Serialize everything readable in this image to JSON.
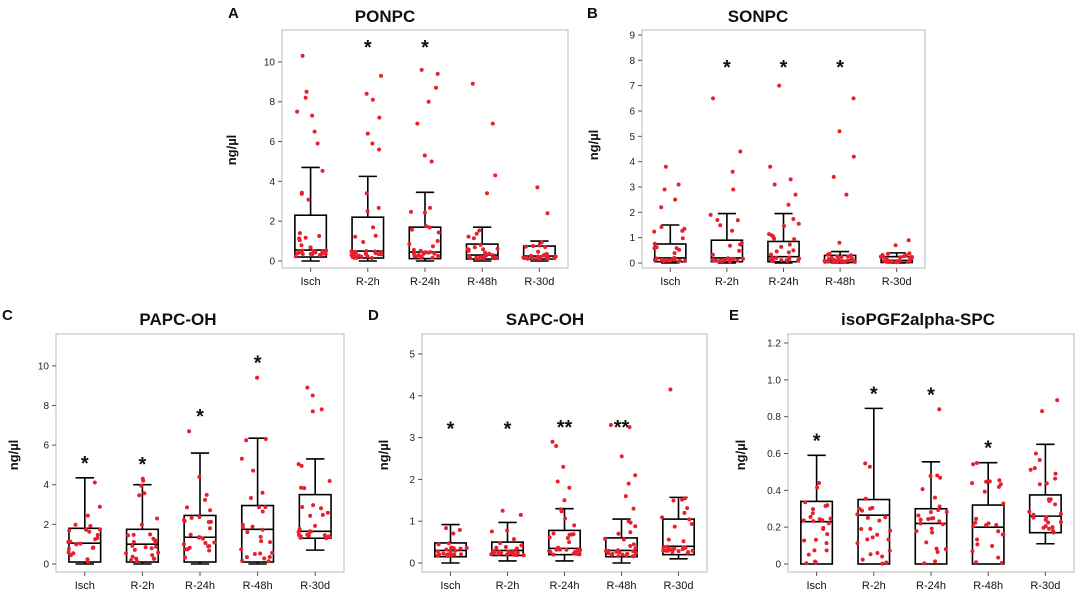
{
  "chart_data": [
    {
      "type": "boxplot",
      "panel_letter": "A",
      "title": "PONPC",
      "ylabel": "ng/µl",
      "ylim": [
        0,
        11
      ],
      "yticks": [
        0,
        2,
        4,
        6,
        8,
        10
      ],
      "categories": [
        "Isch",
        "R-2h",
        "R-24h",
        "R-48h",
        "R-30d"
      ],
      "significance": [
        "",
        "*",
        "*",
        "",
        ""
      ],
      "boxes": [
        {
          "whisker_low": 0,
          "q1": 0.2,
          "median": 0.55,
          "q3": 2.3,
          "whisker_high": 4.7
        },
        {
          "whisker_low": 0,
          "q1": 0.15,
          "median": 0.5,
          "q3": 2.2,
          "whisker_high": 4.25
        },
        {
          "whisker_low": 0,
          "q1": 0.12,
          "median": 0.45,
          "q3": 1.7,
          "whisker_high": 3.45
        },
        {
          "whisker_low": 0,
          "q1": 0.1,
          "median": 0.3,
          "q3": 0.85,
          "whisker_high": 1.7
        },
        {
          "whisker_low": 0,
          "q1": 0.1,
          "median": 0.25,
          "q3": 0.75,
          "whisker_high": 1.0
        }
      ],
      "outliers": [
        [
          5.9,
          6.5,
          7.3,
          7.5,
          8.2,
          8.5,
          10.3
        ],
        [
          5.6,
          5.9,
          6.4,
          7.2,
          8.1,
          8.4,
          9.3
        ],
        [
          5.0,
          5.3,
          6.9,
          8.0,
          8.7,
          9.4,
          9.6
        ],
        [
          3.4,
          4.3,
          6.9,
          8.9
        ],
        [
          2.4,
          3.7
        ]
      ]
    },
    {
      "type": "boxplot",
      "panel_letter": "B",
      "title": "SONPC",
      "ylabel": "ng/µl",
      "ylim": [
        0,
        9
      ],
      "yticks": [
        0,
        1,
        2,
        3,
        4,
        5,
        6,
        7,
        8,
        9
      ],
      "categories": [
        "Isch",
        "R-2h",
        "R-24h",
        "R-48h",
        "R-30d"
      ],
      "significance": [
        "",
        "*",
        "*",
        "*",
        ""
      ],
      "boxes": [
        {
          "whisker_low": 0,
          "q1": 0.05,
          "median": 0.2,
          "q3": 0.75,
          "whisker_high": 1.5
        },
        {
          "whisker_low": 0,
          "q1": 0.05,
          "median": 0.2,
          "q3": 0.9,
          "whisker_high": 1.95
        },
        {
          "whisker_low": 0,
          "q1": 0.05,
          "median": 0.25,
          "q3": 0.85,
          "whisker_high": 1.95
        },
        {
          "whisker_low": 0,
          "q1": 0.02,
          "median": 0.1,
          "q3": 0.3,
          "whisker_high": 0.45
        },
        {
          "whisker_low": 0,
          "q1": 0.02,
          "median": 0.1,
          "q3": 0.25,
          "whisker_high": 0.4
        }
      ],
      "outliers": [
        [
          2.2,
          2.5,
          2.9,
          3.1,
          3.8
        ],
        [
          2.9,
          3.6,
          4.4,
          6.5
        ],
        [
          2.3,
          2.7,
          3.1,
          3.3,
          3.8,
          7.0
        ],
        [
          0.8,
          2.7,
          3.4,
          4.2,
          5.2,
          6.5
        ],
        [
          0.7,
          0.9
        ]
      ]
    },
    {
      "type": "boxplot",
      "panel_letter": "C",
      "title": "PAPC-OH",
      "ylabel": "ng/µl",
      "ylim": [
        0,
        11
      ],
      "yticks": [
        0,
        2,
        4,
        6,
        8,
        10
      ],
      "categories": [
        "Isch",
        "R-2h",
        "R-24h",
        "R-48h",
        "R-30d"
      ],
      "significance": [
        "*",
        "*",
        "*",
        "*",
        ""
      ],
      "boxes": [
        {
          "whisker_low": 0,
          "q1": 0.1,
          "median": 1.05,
          "q3": 1.8,
          "whisker_high": 4.35
        },
        {
          "whisker_low": 0,
          "q1": 0.1,
          "median": 1.0,
          "q3": 1.75,
          "whisker_high": 4.0
        },
        {
          "whisker_low": 0,
          "q1": 0.1,
          "median": 1.35,
          "q3": 2.45,
          "whisker_high": 5.6
        },
        {
          "whisker_low": 0,
          "q1": 0.1,
          "median": 1.75,
          "q3": 2.95,
          "whisker_high": 6.35
        },
        {
          "whisker_low": 0.7,
          "q1": 1.3,
          "median": 1.65,
          "q3": 3.5,
          "whisker_high": 5.3
        }
      ],
      "outliers": [
        [],
        [
          4.2,
          4.3
        ],
        [
          6.7
        ],
        [
          9.4
        ],
        [
          7.7,
          7.8,
          8.5,
          8.9
        ]
      ]
    },
    {
      "type": "boxplot",
      "panel_letter": "D",
      "title": "SAPC-OH",
      "ylabel": "ng/µl",
      "ylim": [
        0,
        5
      ],
      "yticks": [
        0,
        1,
        2,
        3,
        4,
        5
      ],
      "categories": [
        "Isch",
        "R-2h",
        "R-24h",
        "R-48h",
        "R-30d"
      ],
      "significance": [
        "*",
        "*",
        "**",
        "**",
        ""
      ],
      "boxes": [
        {
          "whisker_low": 0,
          "q1": 0.15,
          "median": 0.3,
          "q3": 0.48,
          "whisker_high": 0.92
        },
        {
          "whisker_low": 0.05,
          "q1": 0.18,
          "median": 0.3,
          "q3": 0.5,
          "whisker_high": 0.97
        },
        {
          "whisker_low": 0.05,
          "q1": 0.2,
          "median": 0.35,
          "q3": 0.78,
          "whisker_high": 1.3
        },
        {
          "whisker_low": 0,
          "q1": 0.15,
          "median": 0.3,
          "q3": 0.6,
          "whisker_high": 1.05
        },
        {
          "whisker_low": 0.1,
          "q1": 0.2,
          "median": 0.4,
          "q3": 1.05,
          "whisker_high": 1.57
        }
      ],
      "outliers": [
        [],
        [
          1.15,
          1.25
        ],
        [
          1.5,
          1.8,
          1.95,
          2.3,
          2.8,
          2.9
        ],
        [
          1.3,
          1.6,
          1.9,
          2.1,
          2.55,
          3.25,
          3.3
        ],
        [
          1.2,
          4.15
        ]
      ]
    },
    {
      "type": "boxplot",
      "panel_letter": "E",
      "title": "isoPGF2alpha-SPC",
      "ylabel": "ng/µl",
      "ylim": [
        0,
        1.2
      ],
      "yticks": [
        0,
        0.2,
        0.4,
        0.6,
        0.8,
        1.0,
        1.2
      ],
      "ytick_labels": [
        "0",
        "0.2",
        "0.4",
        "0.6",
        "0.8",
        "1.0",
        "1.2"
      ],
      "categories": [
        "Isch",
        "R-2h",
        "R-24h",
        "R-48h",
        "R-30d"
      ],
      "significance": [
        "*",
        "*",
        "*",
        "*",
        ""
      ],
      "boxes": [
        {
          "whisker_low": 0,
          "q1": 0,
          "median": 0.23,
          "q3": 0.34,
          "whisker_high": 0.59
        },
        {
          "whisker_low": 0,
          "q1": 0,
          "median": 0.265,
          "q3": 0.35,
          "whisker_high": 0.845
        },
        {
          "whisker_low": 0,
          "q1": 0,
          "median": 0.22,
          "q3": 0.3,
          "whisker_high": 0.555
        },
        {
          "whisker_low": 0,
          "q1": 0,
          "median": 0.2,
          "q3": 0.32,
          "whisker_high": 0.55
        },
        {
          "whisker_low": 0.11,
          "q1": 0.17,
          "median": 0.26,
          "q3": 0.375,
          "whisker_high": 0.65
        }
      ],
      "outliers": [
        [],
        [],
        [
          0.84
        ],
        [],
        [
          0.83,
          0.89
        ]
      ]
    }
  ]
}
